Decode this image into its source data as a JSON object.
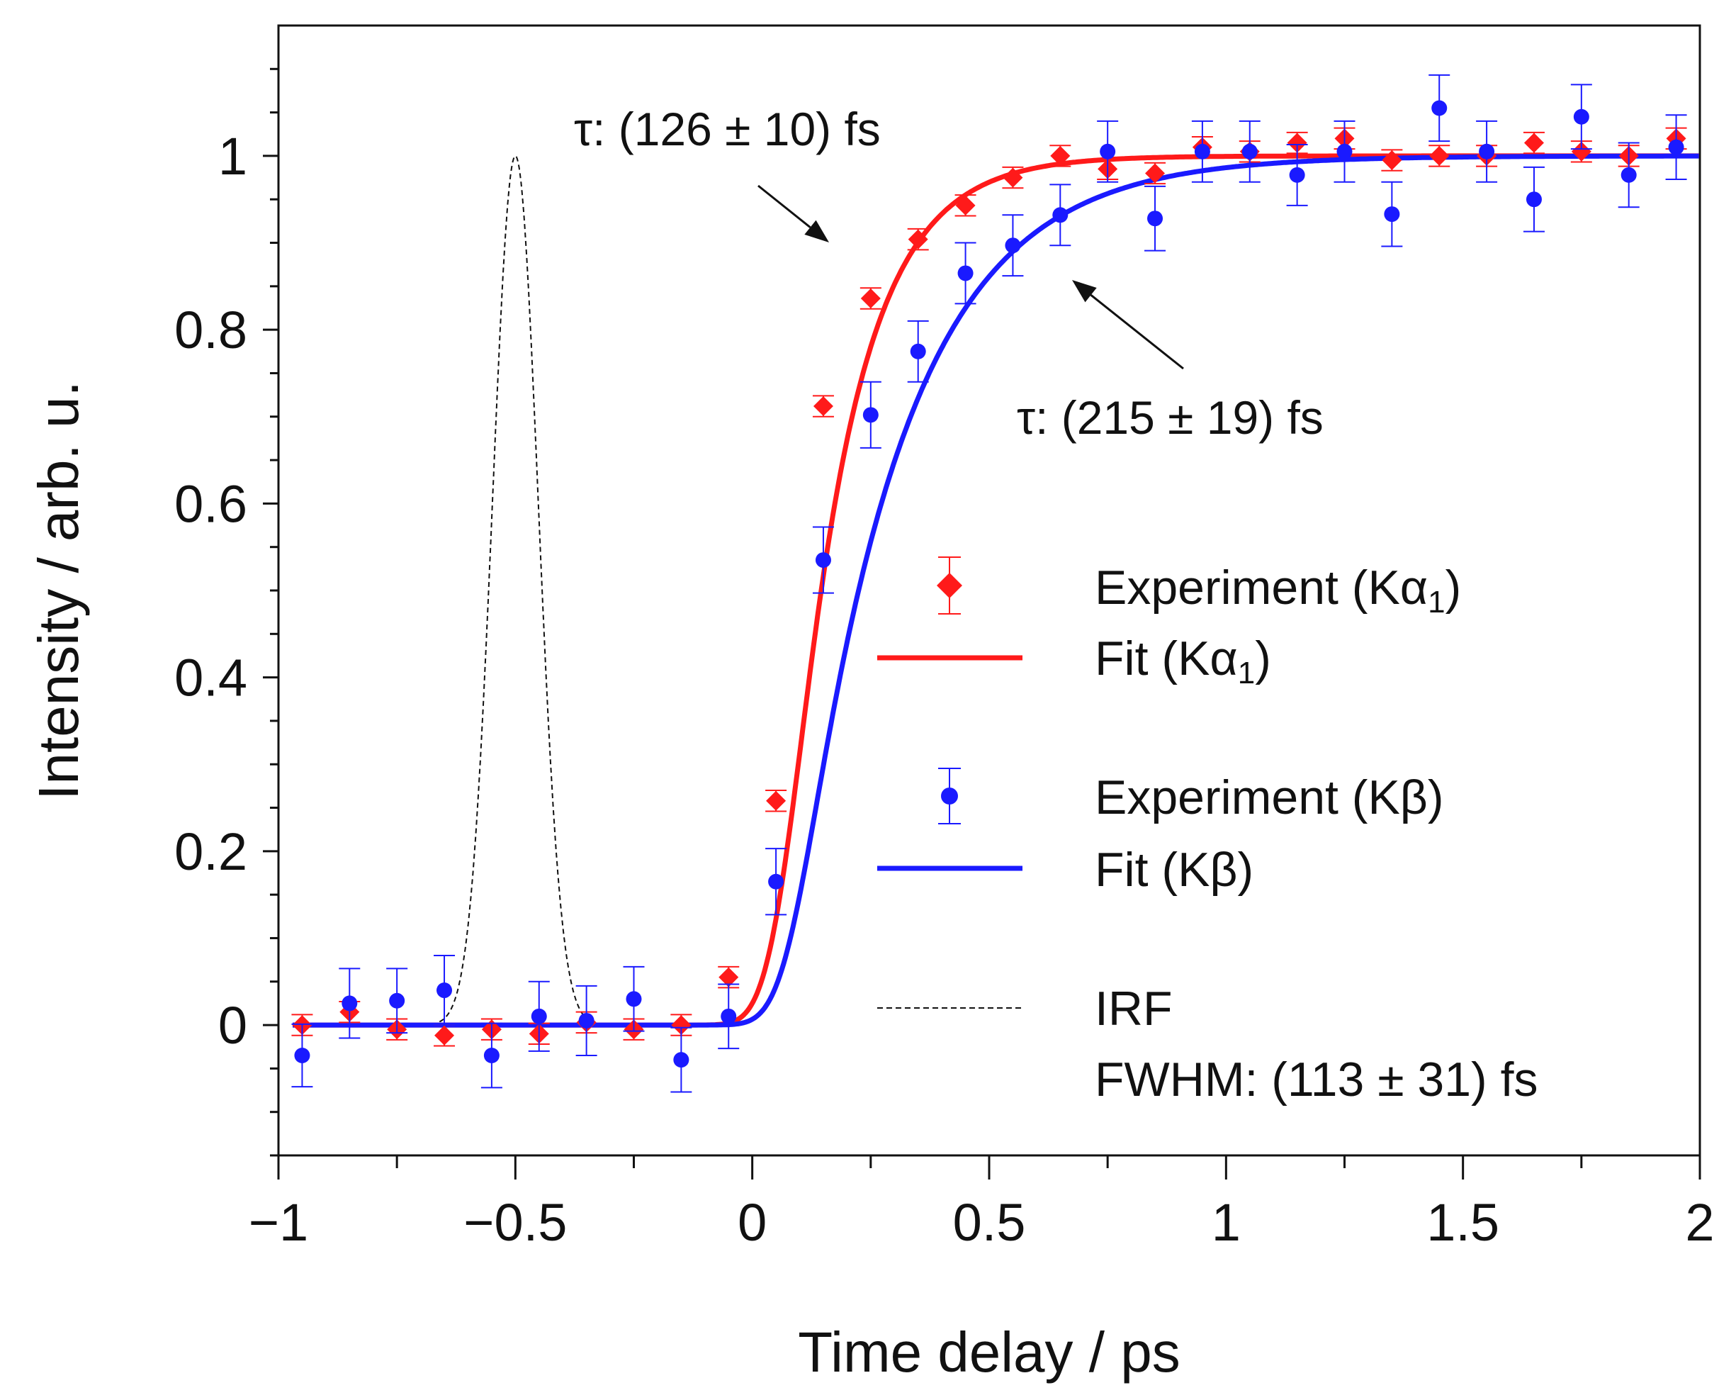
{
  "chart_data": {
    "type": "scatter",
    "title": "",
    "xlabel": "Time delay / ps",
    "ylabel": "Intensity / arb. u.",
    "xlim": [
      -1,
      2
    ],
    "ylim": [
      -0.15,
      1.15
    ],
    "x_ticks": [
      -1,
      -0.5,
      0,
      0.5,
      1,
      1.5,
      2
    ],
    "x_tick_labels": [
      "−1",
      "−0.5",
      "0",
      "0.5",
      "1",
      "1.5",
      "2"
    ],
    "y_ticks": [
      0,
      0.2,
      0.4,
      0.6,
      0.8,
      1
    ],
    "y_tick_labels": [
      "0",
      "0.2",
      "0.4",
      "0.6",
      "0.8",
      "1"
    ],
    "grid": false,
    "legend_position": "right-center",
    "colors": {
      "red": "#ff1a1a",
      "blue": "#1a1aff",
      "black": "#111111"
    },
    "series": [
      {
        "name": "Experiment (Kα1)",
        "kind": "points-errorbar",
        "marker": "diamond",
        "color": "#ff1a1a",
        "x": [
          -0.95,
          -0.85,
          -0.75,
          -0.65,
          -0.55,
          -0.45,
          -0.35,
          -0.25,
          -0.15,
          -0.05,
          0.05,
          0.15,
          0.25,
          0.35,
          0.45,
          0.55,
          0.65,
          0.75,
          0.85,
          0.95,
          1.05,
          1.15,
          1.25,
          1.35,
          1.45,
          1.55,
          1.65,
          1.75,
          1.85,
          1.95
        ],
        "y": [
          0.0,
          0.015,
          -0.005,
          -0.012,
          -0.005,
          -0.01,
          0.003,
          -0.005,
          0.0,
          0.055,
          0.258,
          0.712,
          0.836,
          0.904,
          0.943,
          0.975,
          1.0,
          0.985,
          0.98,
          1.01,
          1.005,
          1.015,
          1.02,
          0.995,
          1.0,
          1.0,
          1.015,
          1.005,
          1.0,
          1.02
        ],
        "err": [
          0.012,
          0.012,
          0.012,
          0.012,
          0.012,
          0.012,
          0.012,
          0.012,
          0.012,
          0.012,
          0.012,
          0.012,
          0.012,
          0.012,
          0.012,
          0.012,
          0.012,
          0.012,
          0.012,
          0.012,
          0.012,
          0.012,
          0.012,
          0.012,
          0.012,
          0.012,
          0.012,
          0.012,
          0.012,
          0.012
        ]
      },
      {
        "name": "Fit  (Kα1)",
        "kind": "line",
        "color": "#ff1a1a",
        "tau_ps": 0.126,
        "t0_ps": 0.05,
        "line_width": 7
      },
      {
        "name": "Experiment (Kβ)",
        "kind": "points-errorbar",
        "marker": "circle",
        "color": "#1a1aff",
        "x": [
          -0.95,
          -0.85,
          -0.75,
          -0.65,
          -0.55,
          -0.45,
          -0.35,
          -0.25,
          -0.15,
          -0.05,
          0.05,
          0.15,
          0.25,
          0.35,
          0.45,
          0.55,
          0.65,
          0.75,
          0.85,
          0.95,
          1.05,
          1.15,
          1.25,
          1.35,
          1.45,
          1.55,
          1.65,
          1.75,
          1.85,
          1.95
        ],
        "y": [
          -0.035,
          0.025,
          0.028,
          0.04,
          -0.035,
          0.01,
          0.005,
          0.03,
          -0.04,
          0.01,
          0.165,
          0.535,
          0.702,
          0.775,
          0.865,
          0.897,
          0.932,
          1.005,
          0.928,
          1.005,
          1.005,
          0.978,
          1.005,
          0.933,
          1.055,
          1.005,
          0.95,
          1.045,
          0.978,
          1.01
        ],
        "err": [
          0.036,
          0.04,
          0.037,
          0.04,
          0.037,
          0.04,
          0.04,
          0.037,
          0.037,
          0.037,
          0.038,
          0.038,
          0.038,
          0.035,
          0.035,
          0.035,
          0.035,
          0.035,
          0.037,
          0.035,
          0.035,
          0.035,
          0.035,
          0.037,
          0.038,
          0.035,
          0.037,
          0.037,
          0.037,
          0.037
        ]
      },
      {
        "name": "Fit (Kβ)",
        "kind": "line",
        "color": "#1a1aff",
        "tau_ps": 0.215,
        "t0_ps": 0.07,
        "line_width": 7
      },
      {
        "name": "IRF",
        "kind": "dashed-line",
        "color": "#111111",
        "center_ps": -0.5,
        "fwhm_ps": 0.113,
        "peak": 1.0,
        "line_width": 2
      }
    ],
    "annotations": [
      {
        "text": "τ: (126 ± 10) fs",
        "points_to": {
          "x": 0.2,
          "y": 0.89
        }
      },
      {
        "text": "τ: (215 ± 19) fs",
        "points_to": {
          "x": 0.66,
          "y": 0.86
        }
      }
    ],
    "legend": {
      "items": [
        {
          "label": "Experiment (Kα",
          "subscript": "1",
          "suffix": ")"
        },
        {
          "label": "Fit  (Kα",
          "subscript": "1",
          "suffix": ")"
        },
        {
          "label": "Experiment (Kβ)",
          "subscript": "",
          "suffix": ""
        },
        {
          "label": "Fit (Kβ)",
          "subscript": "",
          "suffix": ""
        },
        {
          "label": "IRF",
          "subscript": "",
          "suffix": ""
        }
      ],
      "irf_note": "FWHM: (113 ± 31) fs"
    }
  }
}
